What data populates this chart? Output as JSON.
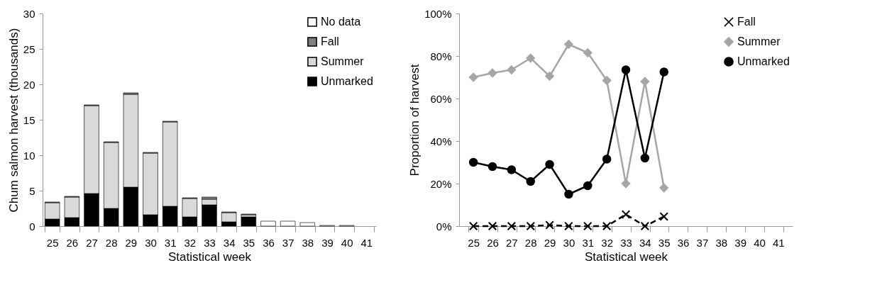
{
  "chart_data": [
    {
      "type": "bar",
      "stacked": true,
      "xlabel": "Statistical week",
      "ylabel": "Chum salmon harvest (thousands)",
      "categories": [
        "25",
        "26",
        "27",
        "28",
        "29",
        "30",
        "31",
        "32",
        "33",
        "34",
        "35",
        "36",
        "37",
        "38",
        "39",
        "40",
        "41"
      ],
      "series": [
        {
          "name": "Unmarked",
          "color": "#000000",
          "values": [
            1.0,
            1.2,
            4.6,
            2.5,
            5.5,
            1.6,
            2.8,
            1.3,
            3.0,
            0.6,
            1.3,
            null,
            null,
            null,
            null,
            null,
            null
          ]
        },
        {
          "name": "Summer",
          "color": "#d9d9d9",
          "values": [
            2.3,
            2.9,
            12.4,
            9.3,
            13.1,
            8.7,
            11.9,
            2.6,
            0.8,
            1.3,
            0.3,
            null,
            null,
            null,
            null,
            null,
            null
          ]
        },
        {
          "name": "Fall",
          "color": "#808080",
          "values": [
            0.1,
            0.1,
            0.1,
            0.1,
            0.2,
            0.1,
            0.1,
            0.1,
            0.3,
            0.1,
            0.1,
            null,
            null,
            null,
            null,
            null,
            null
          ]
        },
        {
          "name": "No data",
          "color": "#ffffff",
          "values": [
            null,
            null,
            null,
            null,
            null,
            null,
            null,
            null,
            null,
            null,
            null,
            0.7,
            0.7,
            0.5,
            0.1,
            0.1,
            null
          ]
        }
      ],
      "ylim": [
        0,
        30
      ],
      "yticks": [
        0,
        5,
        10,
        15,
        20,
        25,
        30
      ],
      "grid": false,
      "legend": "top right"
    },
    {
      "type": "line",
      "xlabel": "Statistical week",
      "ylabel": "Proportion of harvest",
      "categories": [
        "25",
        "26",
        "27",
        "28",
        "29",
        "30",
        "31",
        "32",
        "33",
        "34",
        "35",
        "36",
        "37",
        "38",
        "39",
        "40",
        "41"
      ],
      "series": [
        {
          "name": "Fall",
          "color": "#000000",
          "marker": "cross",
          "line_style": "dashed",
          "values": [
            0,
            0,
            0,
            0,
            0.5,
            0,
            0,
            0,
            5.5,
            0,
            4.5,
            null,
            null,
            null,
            null,
            null,
            null
          ]
        },
        {
          "name": "Summer",
          "color": "#a6a6a6",
          "marker": "diamond",
          "line_style": "solid",
          "values": [
            70,
            72,
            73.5,
            79,
            70.5,
            85.5,
            81.5,
            68.5,
            20,
            68,
            18,
            null,
            null,
            null,
            null,
            null,
            null
          ]
        },
        {
          "name": "Unmarked",
          "color": "#000000",
          "marker": "circle",
          "line_style": "solid",
          "values": [
            30,
            28,
            26.5,
            21,
            29,
            15,
            19,
            31.5,
            73.5,
            32,
            72.5,
            null,
            null,
            null,
            null,
            null,
            null
          ]
        }
      ],
      "ylim": [
        0,
        100
      ],
      "yticks": [
        {
          "value": 0,
          "label": "0%"
        },
        {
          "value": 20,
          "label": "20%"
        },
        {
          "value": 40,
          "label": "40%"
        },
        {
          "value": 60,
          "label": "60%"
        },
        {
          "value": 80,
          "label": "80%"
        },
        {
          "value": 100,
          "label": "100%"
        }
      ],
      "grid": false,
      "legend": "top right"
    }
  ]
}
